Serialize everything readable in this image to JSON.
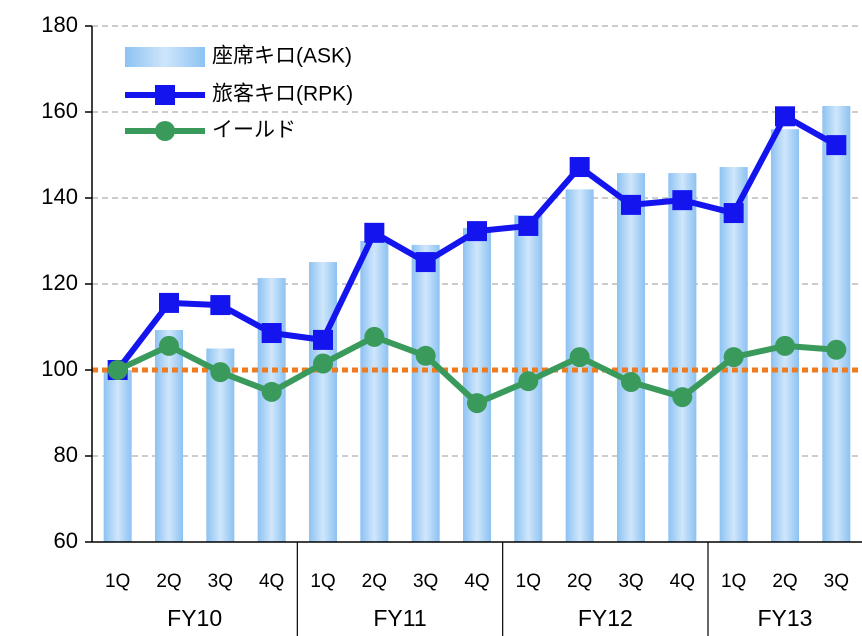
{
  "chart_data": {
    "type": "bar-line",
    "groups": [
      {
        "name": "FY10",
        "categories": [
          "1Q",
          "2Q",
          "3Q",
          "4Q"
        ]
      },
      {
        "name": "FY11",
        "categories": [
          "1Q",
          "2Q",
          "3Q",
          "4Q"
        ]
      },
      {
        "name": "FY12",
        "categories": [
          "1Q",
          "2Q",
          "3Q",
          "4Q"
        ]
      },
      {
        "name": "FY13",
        "categories": [
          "1Q",
          "2Q",
          "3Q"
        ]
      }
    ],
    "series": [
      {
        "name": "座席キロ(ASK)",
        "kind": "bar",
        "color": "#a9d1f6",
        "values": [
          100,
          109.3,
          105,
          121.4,
          125.1,
          130,
          129.1,
          133,
          136,
          142,
          145.8,
          145.8,
          147.2,
          156,
          161.4
        ]
      },
      {
        "name": "旅客キロ(RPK)",
        "kind": "line",
        "marker": "square",
        "color": "#1414ee",
        "values": [
          100,
          115.6,
          115.1,
          108.6,
          107,
          131.9,
          125.1,
          132.3,
          133.5,
          147.2,
          138.4,
          139.5,
          136.5,
          159,
          152.3
        ]
      },
      {
        "name": "イールド",
        "kind": "line",
        "marker": "circle",
        "color": "#3a9a5c",
        "values": [
          100,
          105.6,
          99.5,
          94.9,
          101.5,
          107.7,
          103.3,
          92.3,
          97.4,
          103,
          97.2,
          93.7,
          103,
          105.6,
          104.7
        ]
      }
    ],
    "hline": {
      "value": 100,
      "color": "#f07a1e"
    },
    "ylim": [
      60,
      180
    ],
    "yticks": [
      60,
      80,
      100,
      120,
      140,
      160,
      180
    ],
    "grid": true
  }
}
